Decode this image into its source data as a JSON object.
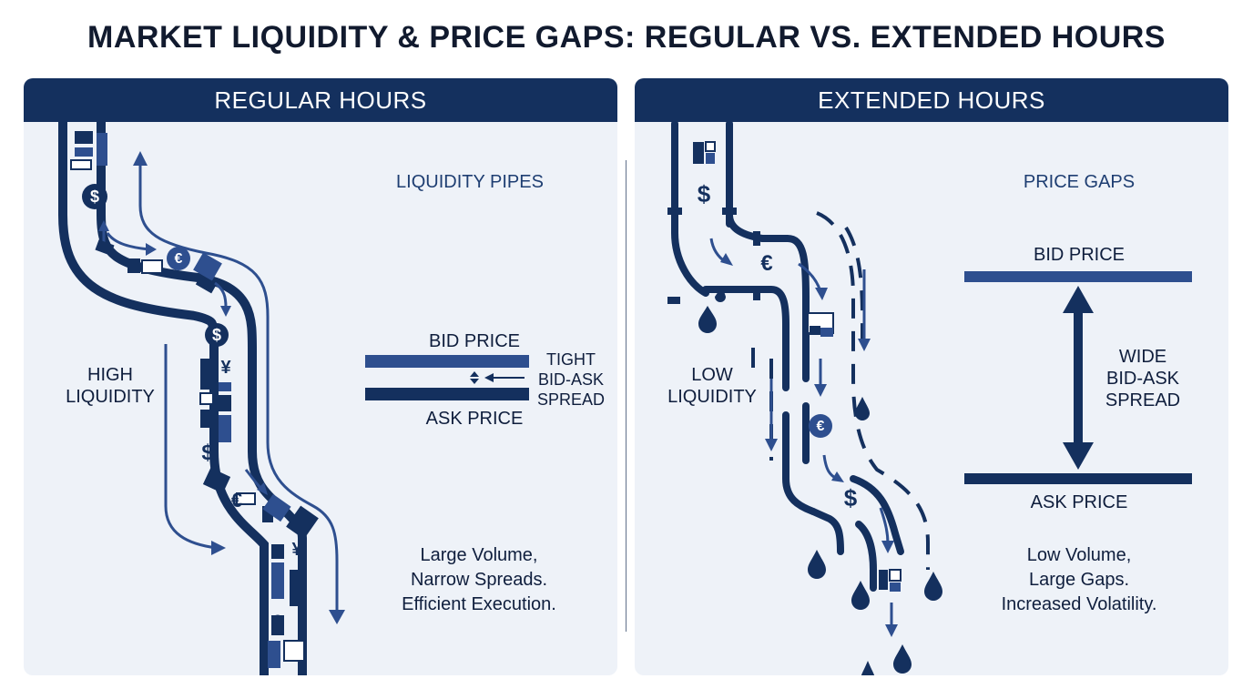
{
  "title": "MARKET LIQUIDITY & PRICE GAPS: REGULAR VS. EXTENDED HOURS",
  "regular": {
    "header": "REGULAR HOURS",
    "section_label": "LIQUIDITY PIPES",
    "liquidity_line1": "HIGH",
    "liquidity_line2": "LIQUIDITY",
    "bid_label": "BID PRICE",
    "ask_label": "ASK PRICE",
    "spread_line1": "TIGHT",
    "spread_line2": "BID-ASK",
    "spread_line3": "SPREAD",
    "summary_line1": "Large Volume,",
    "summary_line2": "Narrow Spreads.",
    "summary_line3": "Efficient Execution."
  },
  "extended": {
    "header": "EXTENDED HOURS",
    "section_label": "PRICE GAPS",
    "liquidity_line1": "LOW",
    "liquidity_line2": "LIQUIDITY",
    "bid_label": "BID PRICE",
    "ask_label": "ASK PRICE",
    "spread_line1": "WIDE",
    "spread_line2": "BID-ASK",
    "spread_line3": "SPREAD",
    "summary_line1": "Low Volume,",
    "summary_line2": "Large Gaps.",
    "summary_line3": "Increased Volatility."
  },
  "symbols": {
    "dollar": "$",
    "euro": "€",
    "yen": "¥"
  },
  "colors": {
    "navy": "#14305e",
    "blue": "#2e4f8f",
    "panel": "#eef2f8"
  }
}
